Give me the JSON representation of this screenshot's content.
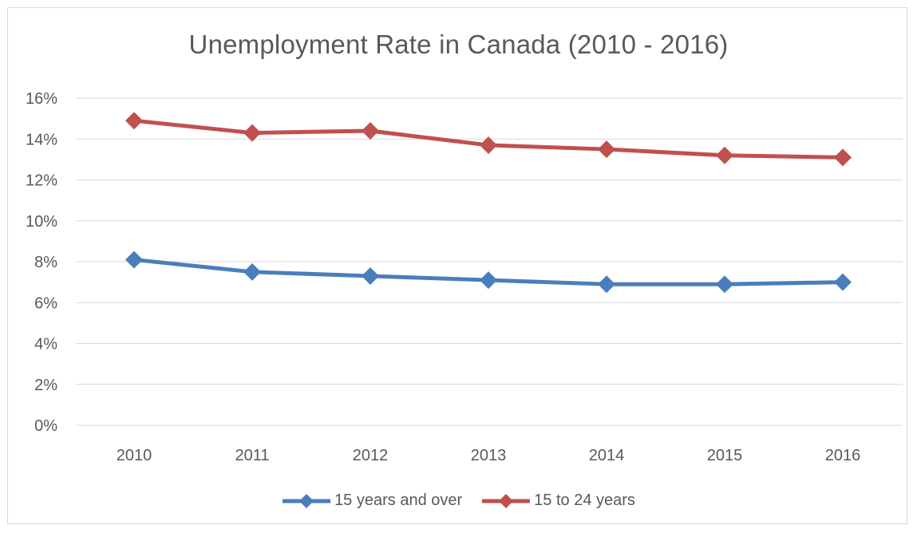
{
  "chart_data": {
    "type": "line",
    "title": "Unemployment Rate in Canada (2010 - 2016)",
    "xlabel": "",
    "ylabel": "",
    "x": [
      "2010",
      "2011",
      "2012",
      "2013",
      "2014",
      "2015",
      "2016"
    ],
    "ylim": [
      0,
      16
    ],
    "yticks": [
      0,
      2,
      4,
      6,
      8,
      10,
      12,
      14,
      16
    ],
    "ytick_labels": [
      "0%",
      "2%",
      "4%",
      "6%",
      "8%",
      "10%",
      "12%",
      "14%",
      "16%"
    ],
    "grid": "horizontal",
    "legend_position": "bottom",
    "series": [
      {
        "name": "15 years and over",
        "color": "#4a7ebb",
        "marker": "diamond",
        "values": [
          8.1,
          7.5,
          7.3,
          7.1,
          6.9,
          6.9,
          7.0
        ]
      },
      {
        "name": "15 to 24 years",
        "color": "#c0504d",
        "marker": "diamond",
        "values": [
          14.9,
          14.3,
          14.4,
          13.7,
          13.5,
          13.2,
          13.1
        ]
      }
    ]
  }
}
